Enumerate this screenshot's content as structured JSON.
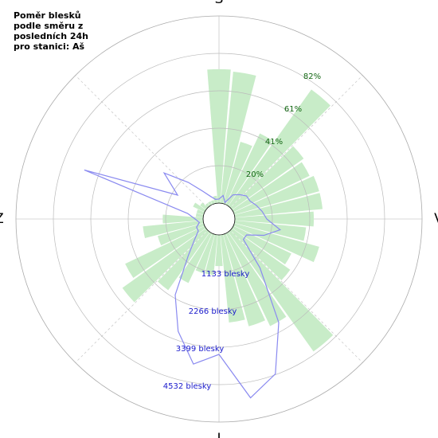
{
  "chart_data": {
    "type": "polar",
    "title_lines": [
      "Poměr blesků",
      "podle směru z",
      "posledních 24h",
      "pro stanici: Aš"
    ],
    "directions": [
      "S",
      "V",
      "J",
      "Z"
    ],
    "x": [
      0,
      10,
      20,
      30,
      40,
      50,
      60,
      70,
      80,
      90,
      100,
      110,
      120,
      130,
      140,
      150,
      160,
      170,
      180,
      190,
      200,
      210,
      220,
      230,
      240,
      250,
      260,
      270,
      280,
      290,
      300,
      310,
      320,
      330,
      340,
      350
    ],
    "rlim": [
      0,
      102
    ],
    "rticks": [
      {
        "value": 20.4,
        "label": "20%"
      },
      {
        "value": 40.8,
        "label": "41%"
      },
      {
        "value": 61.2,
        "label": "61%"
      },
      {
        "value": 81.6,
        "label": "82%"
      }
    ],
    "r2lim": [
      0,
      5665
    ],
    "r2ticks": [
      {
        "value": 1133,
        "label": "1133 blesky"
      },
      {
        "value": 2266,
        "label": "2266 blesky"
      },
      {
        "value": 3399,
        "label": "3399 blesky"
      },
      {
        "value": 4532,
        "label": "4532 blesky"
      }
    ],
    "series": [
      {
        "color": "#c8ecc8",
        "values": [
          73,
          72,
          35,
          43,
          78,
          48,
          46,
          48,
          48,
          43,
          39,
          48,
          35,
          39,
          80,
          56,
          52,
          48,
          17,
          22,
          22,
          30,
          39,
          56,
          48,
          26,
          33,
          22,
          4,
          4,
          7,
          4,
          2,
          2,
          2,
          4
        ]
      },
      {
        "color": "#8a8af0",
        "axis": "y2",
        "values": [
          121,
          241,
          48,
          362,
          482,
          603,
          603,
          723,
          844,
          964,
          1398,
          964,
          482,
          482,
          1446,
          3134,
          4508,
          5014,
          3616,
          3977,
          3134,
          2170,
          964,
          482,
          241,
          241,
          121,
          241,
          482,
          3857,
          964,
          1687,
          964,
          482,
          241,
          121
        ]
      }
    ]
  }
}
